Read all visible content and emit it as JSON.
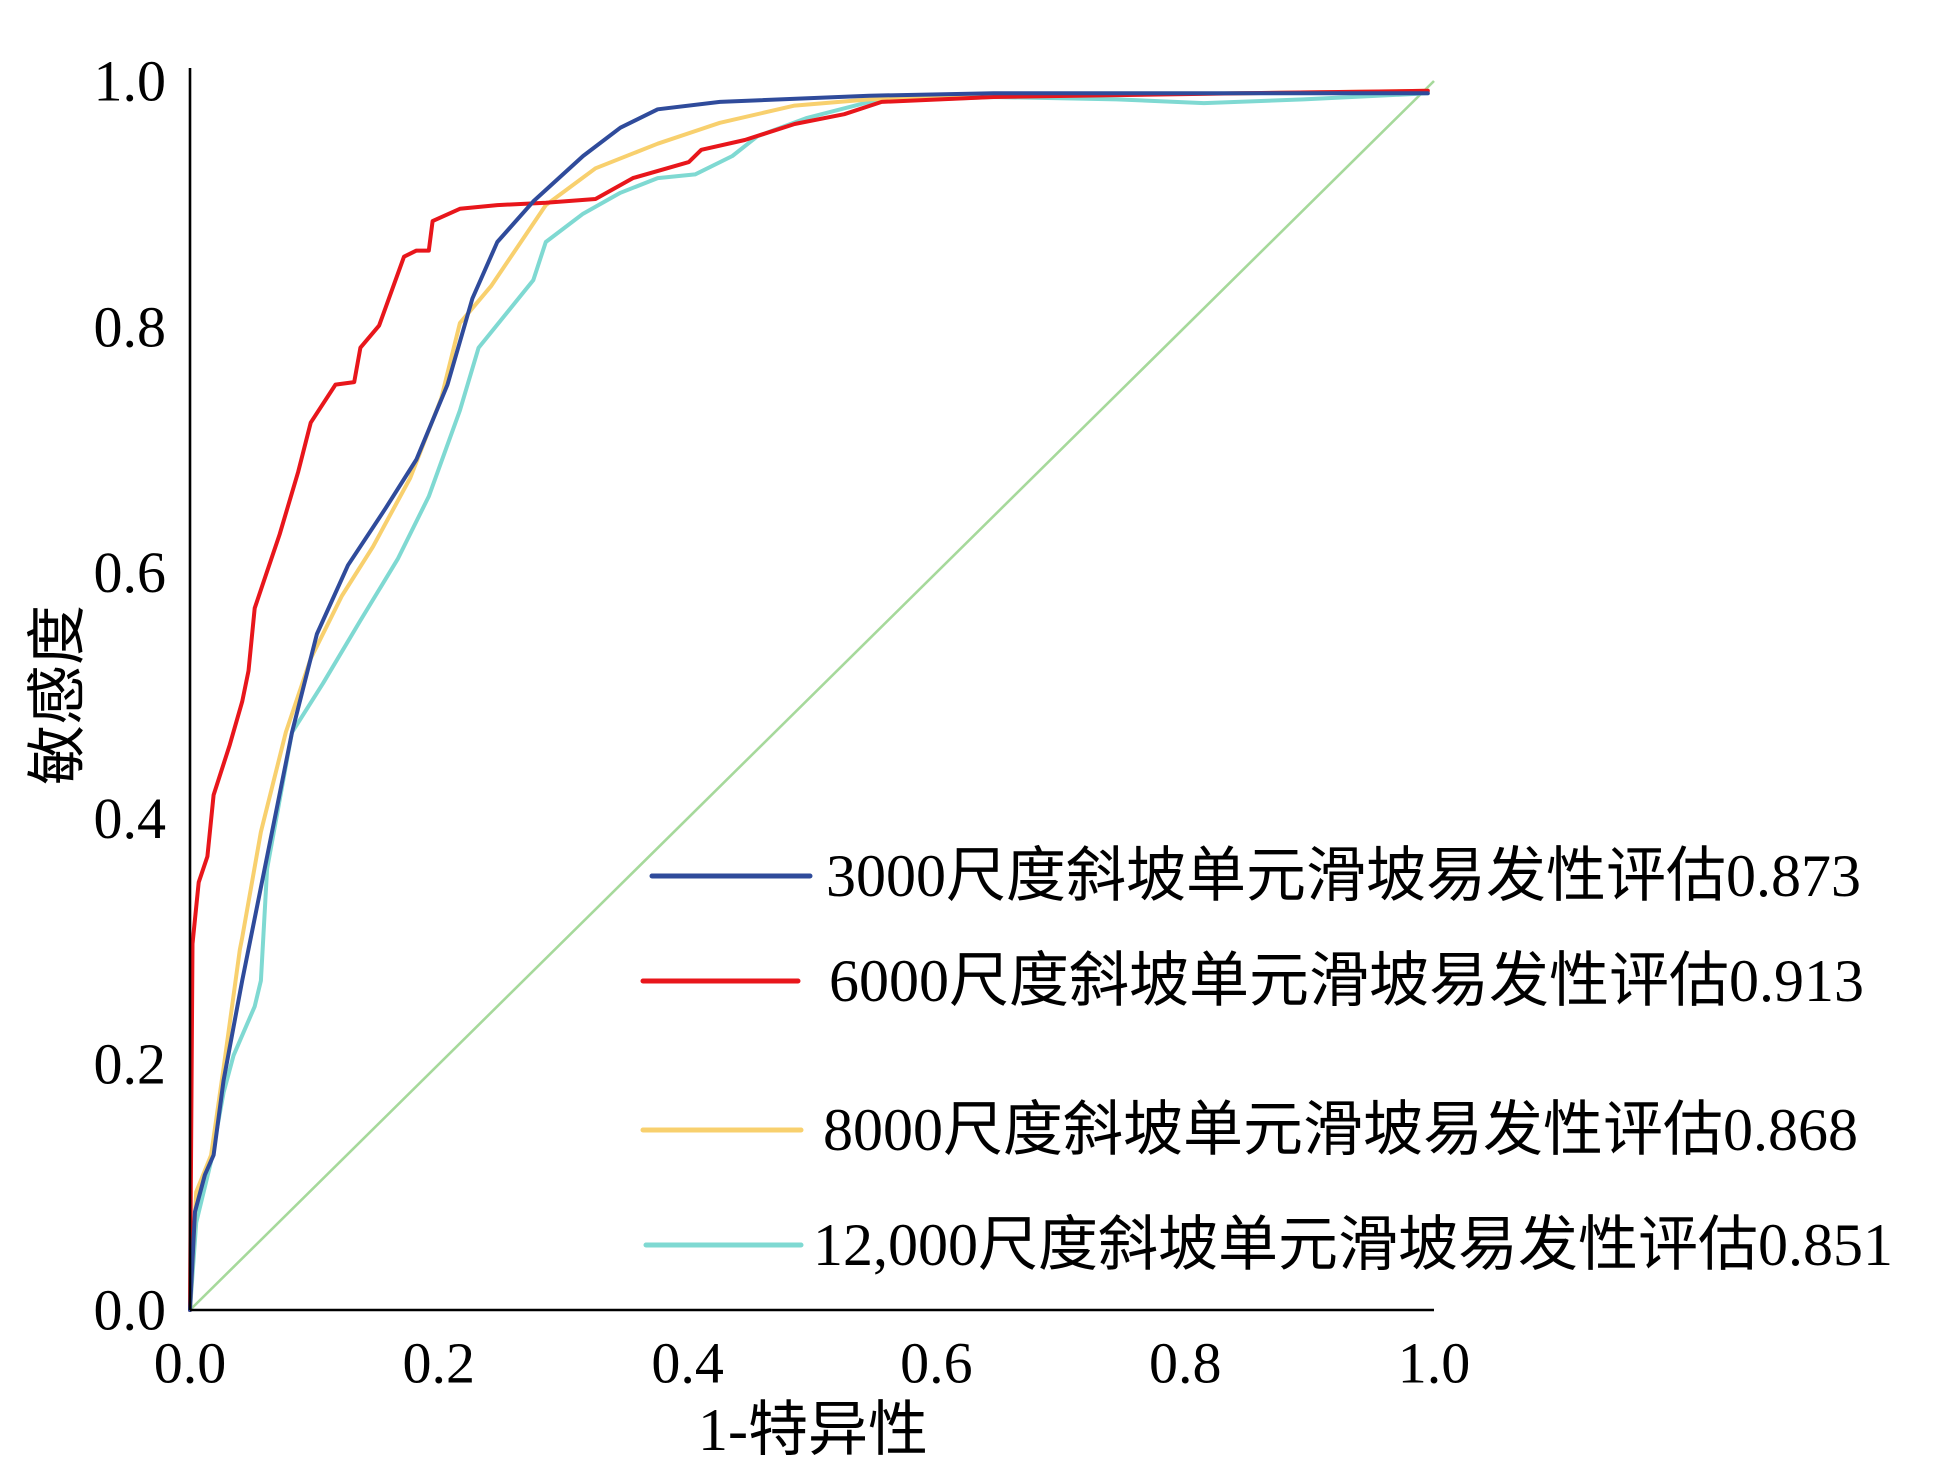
{
  "chart_data": {
    "type": "line",
    "xlabel": "1-特异性",
    "ylabel": "敏感度",
    "xlim": [
      0,
      1
    ],
    "ylim": [
      0,
      1
    ],
    "xticks": [
      "0.0",
      "0.2",
      "0.4",
      "0.6",
      "0.8",
      "1.0"
    ],
    "yticks": [
      "0.0",
      "0.2",
      "0.4",
      "0.6",
      "0.8",
      "1.0"
    ],
    "grid": false,
    "legend_position": "bottom-right",
    "reference_line": {
      "x": [
        0,
        1
      ],
      "y": [
        0,
        1
      ],
      "color": "#A6D99B"
    },
    "series": [
      {
        "name": "3000尺度斜坡单元滑坡易发性评估0.873",
        "color": "#2F4B9B",
        "x": [
          0,
          0.004,
          0.012,
          0.019,
          0.027,
          0.042,
          0.062,
          0.082,
          0.102,
          0.127,
          0.157,
          0.182,
          0.207,
          0.227,
          0.247,
          0.276,
          0.316,
          0.346,
          0.376,
          0.426,
          0.546,
          0.646,
          0.845,
          0.995
        ],
        "y": [
          0,
          0.08,
          0.11,
          0.126,
          0.187,
          0.268,
          0.369,
          0.47,
          0.55,
          0.606,
          0.652,
          0.692,
          0.753,
          0.823,
          0.869,
          0.902,
          0.939,
          0.962,
          0.977,
          0.983,
          0.988,
          0.99,
          0.99,
          0.99
        ]
      },
      {
        "name": "6000尺度斜坡单元滑坡易发性评估0.913",
        "color": "#E8161B",
        "x": [
          0,
          0.002,
          0.007,
          0.014,
          0.019,
          0.032,
          0.042,
          0.047,
          0.052,
          0.062,
          0.072,
          0.087,
          0.097,
          0.117,
          0.132,
          0.137,
          0.152,
          0.172,
          0.182,
          0.192,
          0.195,
          0.217,
          0.247,
          0.286,
          0.326,
          0.356,
          0.401,
          0.411,
          0.446,
          0.486,
          0.526,
          0.556,
          0.646,
          0.845,
          0.995
        ],
        "y": [
          0,
          0.298,
          0.348,
          0.369,
          0.419,
          0.46,
          0.495,
          0.52,
          0.571,
          0.601,
          0.631,
          0.682,
          0.722,
          0.753,
          0.755,
          0.783,
          0.801,
          0.857,
          0.862,
          0.862,
          0.886,
          0.896,
          0.899,
          0.901,
          0.904,
          0.921,
          0.934,
          0.944,
          0.952,
          0.965,
          0.973,
          0.983,
          0.987,
          0.99,
          0.992
        ]
      },
      {
        "name": "8000尺度斜坡单元滑坡易发性评估0.868",
        "color": "#F8D06E",
        "x": [
          0,
          0.005,
          0.017,
          0.027,
          0.04,
          0.042,
          0.057,
          0.077,
          0.097,
          0.122,
          0.147,
          0.177,
          0.202,
          0.217,
          0.242,
          0.266,
          0.286,
          0.326,
          0.376,
          0.426,
          0.486,
          0.546,
          0.646,
          0.845,
          0.995
        ],
        "y": [
          0,
          0.096,
          0.126,
          0.197,
          0.293,
          0.303,
          0.389,
          0.47,
          0.53,
          0.581,
          0.621,
          0.677,
          0.742,
          0.803,
          0.833,
          0.869,
          0.899,
          0.929,
          0.949,
          0.966,
          0.98,
          0.985,
          0.988,
          0.99,
          0.992
        ]
      },
      {
        "name": "12,000尺度斜坡单元滑坡易发性评估0.851",
        "color": "#7FD9D2",
        "x": [
          0,
          0.005,
          0.017,
          0.027,
          0.035,
          0.052,
          0.057,
          0.062,
          0.082,
          0.107,
          0.137,
          0.167,
          0.192,
          0.217,
          0.232,
          0.252,
          0.276,
          0.286,
          0.316,
          0.346,
          0.376,
          0.406,
          0.436,
          0.456,
          0.496,
          0.546,
          0.646,
          0.745,
          0.815,
          0.895,
          0.995
        ],
        "y": [
          0,
          0.071,
          0.121,
          0.177,
          0.207,
          0.247,
          0.268,
          0.359,
          0.47,
          0.51,
          0.561,
          0.611,
          0.662,
          0.732,
          0.783,
          0.808,
          0.838,
          0.869,
          0.892,
          0.909,
          0.921,
          0.924,
          0.939,
          0.955,
          0.97,
          0.983,
          0.987,
          0.985,
          0.982,
          0.985,
          0.99
        ]
      }
    ]
  }
}
